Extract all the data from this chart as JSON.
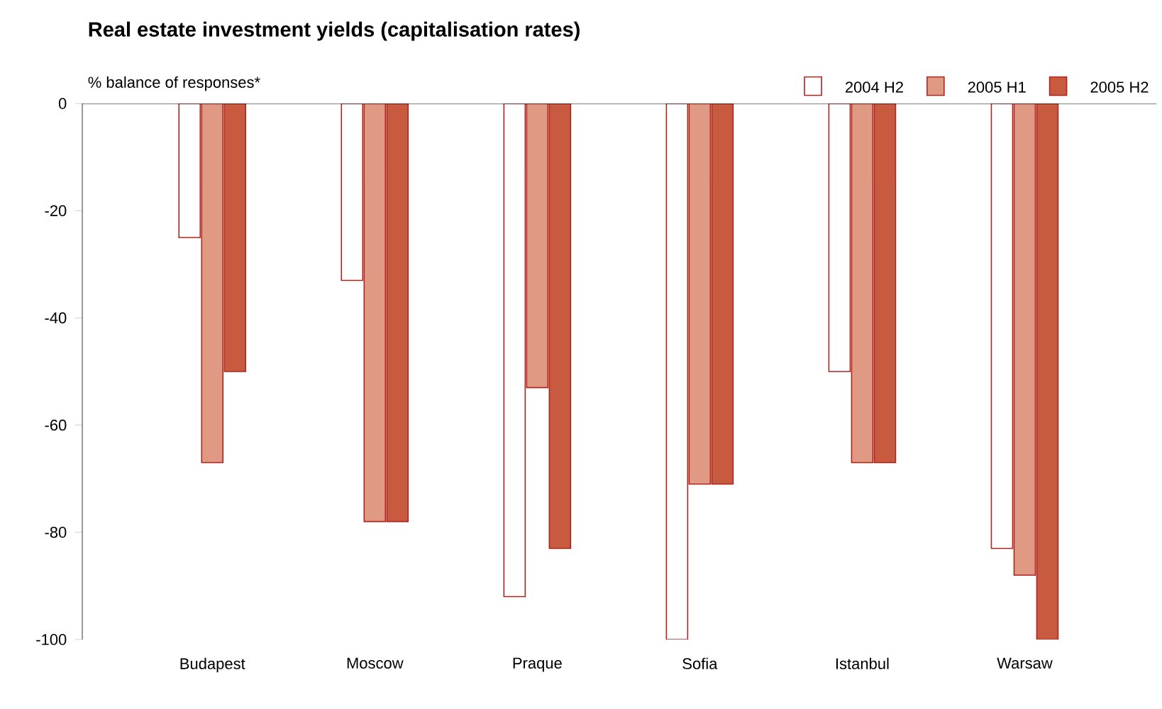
{
  "chart_data": {
    "type": "bar",
    "title": "Real estate investment yields (capitalisation rates)",
    "ylabel": "% balance of responses*",
    "categories": [
      "Budapest",
      "Moscow",
      "Praque",
      "Sofia",
      "Istanbul",
      "Warsaw"
    ],
    "series": [
      {
        "name": "2004 H2",
        "color": "#ffffff",
        "values": [
          -25,
          -33,
          -92,
          -100,
          -50,
          -83
        ]
      },
      {
        "name": "2005 H1",
        "color": "#e09a84",
        "values": [
          -67,
          -78,
          -53,
          -71,
          -67,
          -88
        ]
      },
      {
        "name": "2005 H2",
        "color": "#c85a40",
        "values": [
          -50,
          -78,
          -83,
          -71,
          -67,
          -100
        ]
      }
    ],
    "ylim": [
      -100,
      0
    ],
    "yticks": [
      -100,
      -80,
      -60,
      -40,
      -20,
      0
    ],
    "grid": false,
    "legend": "top right"
  }
}
